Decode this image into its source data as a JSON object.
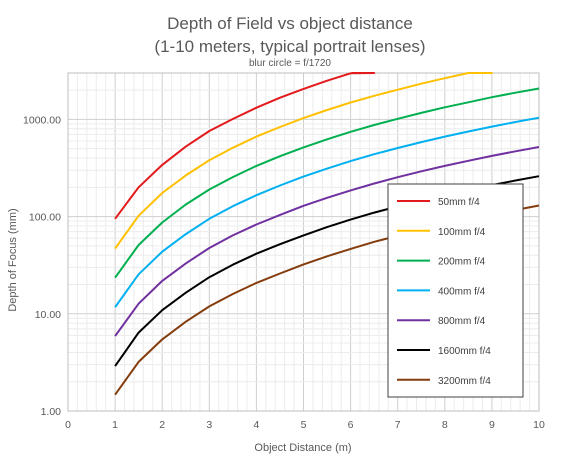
{
  "chart_data": {
    "type": "line",
    "title": [
      "Depth of Field vs object distance",
      "(1-10 meters, typical portrait lenses)"
    ],
    "subtitle": "blur circle = f/1720",
    "xlabel": "Object Distance (m)",
    "ylabel": "Depth of Focus (mm)",
    "xlim": [
      0,
      10
    ],
    "ylim": [
      1,
      3000
    ],
    "yscale": "log",
    "grid": true,
    "x_ticks": [
      0,
      1,
      2,
      3,
      4,
      5,
      6,
      7,
      8,
      9,
      10
    ],
    "x_tick_labels": [
      "0",
      "1",
      "2",
      "3",
      "4",
      "5",
      "6",
      "7",
      "8",
      "9",
      "10"
    ],
    "y_ticks": [
      1,
      10,
      100,
      1000
    ],
    "y_tick_labels": [
      "1.00",
      "10.00",
      "100.00",
      "1000.00"
    ],
    "legend_position": "right",
    "x": [
      1,
      1.5,
      2,
      2.5,
      3,
      3.5,
      4,
      4.5,
      5,
      5.5,
      6,
      6.5,
      7,
      7.5,
      8,
      8.5,
      9,
      9.5,
      10
    ],
    "series": [
      {
        "name": "50mm f/4",
        "color": "#e31a1c",
        "values": [
          95,
          200,
          340,
          525,
          760,
          1010,
          1320,
          1670,
          2060,
          2500,
          2980,
          3500,
          null,
          null,
          null,
          null,
          null,
          null,
          null
        ]
      },
      {
        "name": "100mm f/4",
        "color": "#ffc000",
        "values": [
          47,
          102,
          175,
          265,
          380,
          510,
          665,
          835,
          1030,
          1250,
          1490,
          1750,
          2020,
          2330,
          2650,
          3000,
          3380,
          null,
          null
        ]
      },
      {
        "name": "200mm f/4",
        "color": "#00b050",
        "values": [
          23.5,
          51,
          87,
          133,
          190,
          255,
          332,
          418,
          515,
          624,
          745,
          876,
          1015,
          1165,
          1330,
          1500,
          1690,
          1880,
          2080
        ]
      },
      {
        "name": "400mm f/4",
        "color": "#00b0f0",
        "values": [
          11.7,
          25.5,
          43.5,
          66,
          95,
          128,
          166,
          209,
          258,
          312,
          372,
          438,
          508,
          584,
          665,
          750,
          842,
          940,
          1040
        ]
      },
      {
        "name": "800mm f/4",
        "color": "#7030a0",
        "values": [
          5.9,
          12.7,
          21.8,
          33,
          47.5,
          64,
          83,
          104,
          129,
          156,
          186,
          219,
          254,
          292,
          332,
          375,
          421,
          470,
          520
        ]
      },
      {
        "name": "1600mm f/4",
        "color": "#000000",
        "values": [
          2.9,
          6.4,
          10.9,
          16.5,
          23.8,
          32,
          41.5,
          52,
          64,
          78,
          93,
          110,
          127,
          146,
          166,
          188,
          211,
          235,
          260
        ]
      },
      {
        "name": "3200mm f/4",
        "color": "#843c0c",
        "values": [
          1.47,
          3.2,
          5.45,
          8.3,
          11.9,
          16,
          20.8,
          26,
          32.2,
          39,
          46.5,
          55,
          63.5,
          73,
          83,
          94,
          105,
          117,
          130
        ]
      }
    ]
  }
}
